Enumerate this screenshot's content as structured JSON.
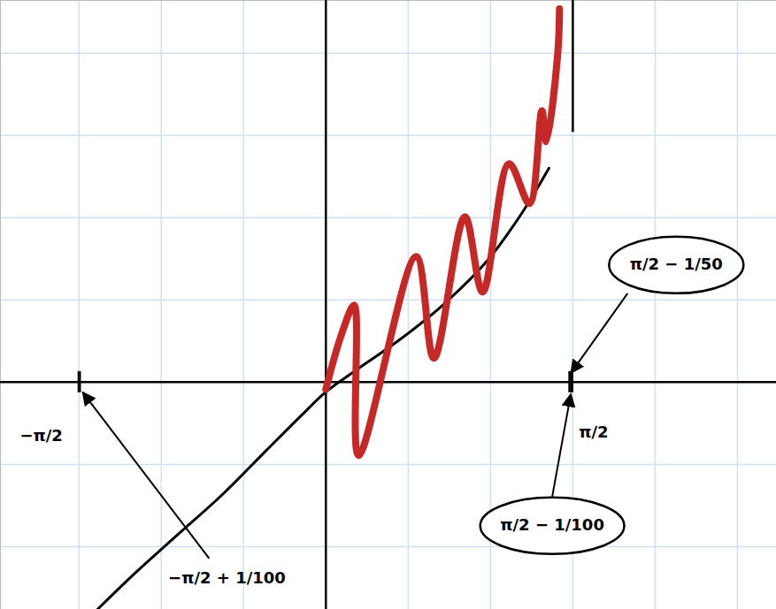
{
  "chart_data": {
    "type": "line",
    "xlim": [
      -2.07,
      2.866
    ],
    "ylim": [
      -1.447,
      2.43
    ],
    "xticks": [
      -1.5708,
      -1.0472,
      -0.5236,
      0,
      0.5236,
      1.0472,
      1.5708,
      2.0944,
      2.618
    ],
    "yticks": [
      -1.0472,
      -0.5236,
      0,
      0.5236,
      1.0472,
      1.5708,
      2.0944
    ],
    "grid": true,
    "tick_labels": false,
    "series": [
      {
        "color": "#000000",
        "x": [
          -1.453,
          -1.227,
          -0.946,
          -0.664,
          -0.383,
          -0.158,
          0,
          0.18,
          0.462,
          0.743,
          1.025,
          1.25,
          1.419
        ],
        "values": [
          -1.447,
          -1.228,
          -0.974,
          -0.721,
          -0.439,
          -0.214,
          -0.062,
          0.068,
          0.265,
          0.49,
          0.771,
          1.081,
          1.362
        ]
      },
      {
        "color": "#c62828",
        "x": [
          0,
          0.096,
          0.18,
          0.208,
          0.574,
          0.687,
          0.884,
          0.997,
          1.165,
          1.295,
          1.374,
          1.402,
          1.475,
          1.486
        ],
        "values": [
          -0.045,
          0.293,
          0.49,
          -0.467,
          0.8,
          0.152,
          1.053,
          0.574,
          1.391,
          1.137,
          1.728,
          1.531,
          2.094,
          2.376
        ]
      }
    ],
    "asymptote": {
      "x": 1.5708,
      "values": [
        1.59,
        2.43
      ]
    },
    "annotations": [
      {
        "text": "−π/2",
        "x": -1.5708
      },
      {
        "text": "−π/2 + 1/100",
        "x": -1.5608
      },
      {
        "text": "π/2 − 1/50",
        "x": 1.5508
      },
      {
        "text": "π/2 − 1/100",
        "x": 1.5608
      },
      {
        "text": "π/2",
        "x": 1.5708
      }
    ]
  }
}
